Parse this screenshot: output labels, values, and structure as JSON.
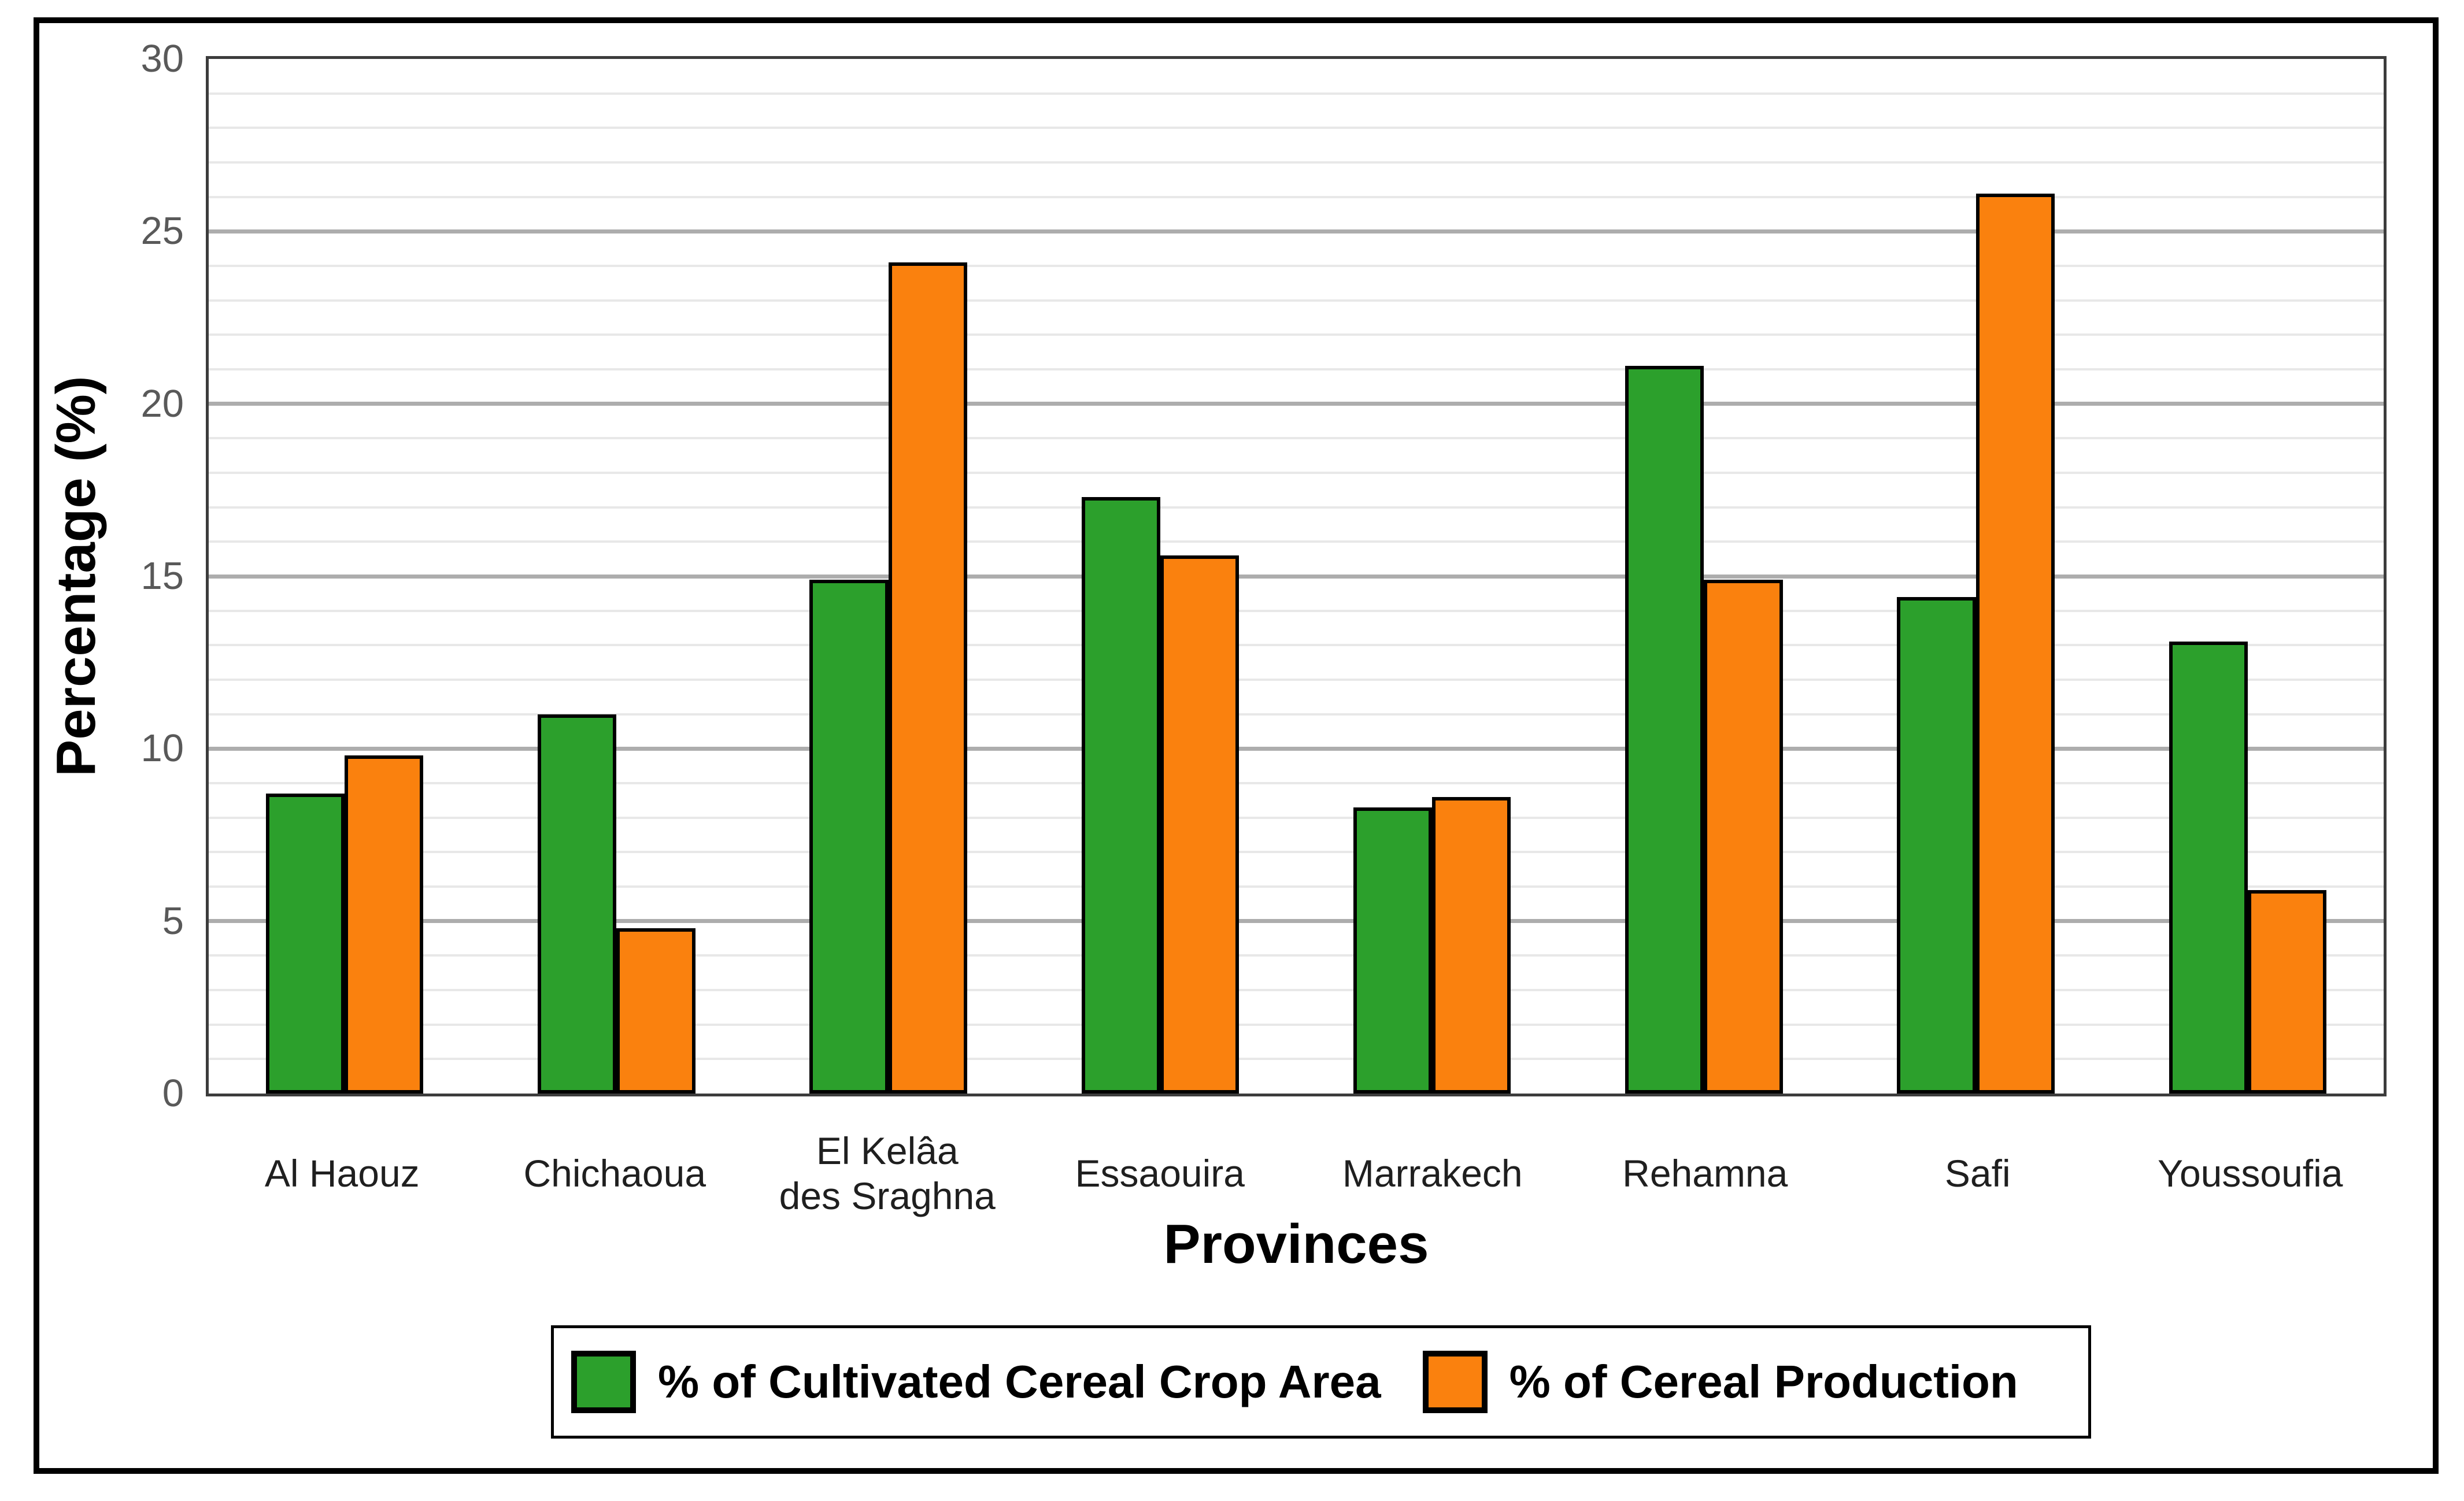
{
  "chart_data": {
    "type": "bar",
    "title": "",
    "categories": [
      "Al Haouz",
      "Chichaoua",
      "El Kelâa\ndes Sraghna",
      "Essaouira",
      "Marrakech",
      "Rehamna",
      "Safi",
      "Youssoufia"
    ],
    "series": [
      {
        "name": "% of Cultivated Cereal Crop Area",
        "color": "#2CA02C",
        "values": [
          8.7,
          11.0,
          14.9,
          17.3,
          8.3,
          21.1,
          14.4,
          13.1
        ]
      },
      {
        "name": "% of Cereal Production",
        "color": "#FA810E",
        "values": [
          9.8,
          4.8,
          24.1,
          15.6,
          8.6,
          14.9,
          26.1,
          5.9
        ]
      }
    ],
    "xlabel": "Provinces",
    "ylabel": "Percentage (%)",
    "ylim": [
      0,
      30
    ],
    "yticks": [
      0,
      5,
      10,
      15,
      20,
      25,
      30
    ],
    "ytick_minor_step": 1,
    "ytick_major_step": 5,
    "grid": "horizontal, minor every 1, major every 5",
    "legend_position": "bottom center, boxed"
  },
  "style": {
    "bar_border_color": "#000000",
    "minor_grid_color": "#e8e8e8",
    "major_grid_color": "#adadad",
    "y_tick_label_color": "#595959",
    "x_tick_label_color": "#1f1f1f",
    "figure_border_color": "#000000"
  }
}
